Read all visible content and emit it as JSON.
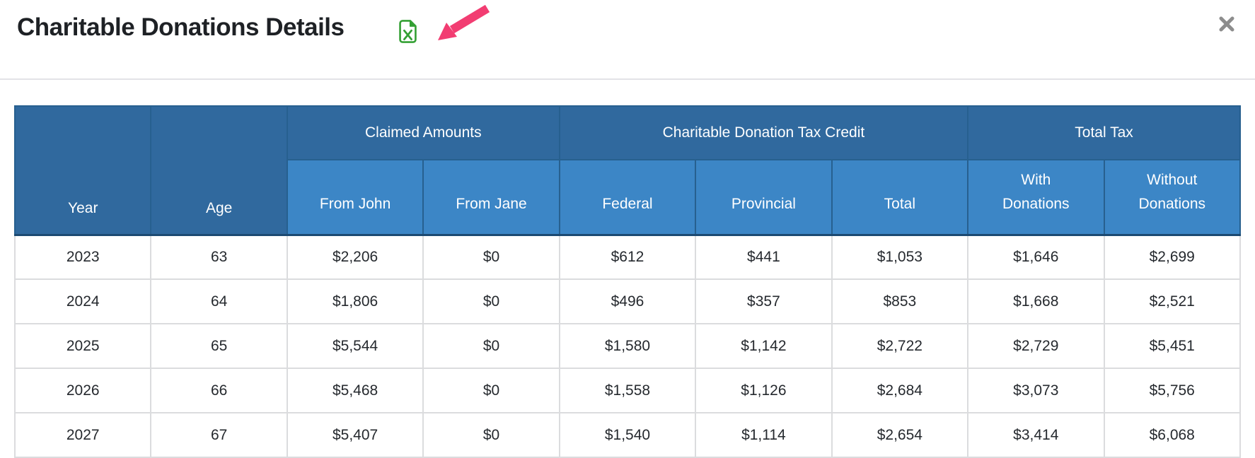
{
  "modal": {
    "title": "Charitable Donations Details",
    "icons": {
      "export_excel": "excel-file-icon",
      "close": "close-x-icon",
      "annotation_arrow": "pink-arrow-pointing-at-export-icon"
    }
  },
  "colors": {
    "header_dark_blue": "#30699E",
    "header_light_blue": "#3C86C6",
    "header_border": "#27608F",
    "header_bottom_border": "#1C4A72",
    "row_border": "#DBDCDE",
    "excel_green": "#34A034",
    "arrow_pink": "#F23D72",
    "close_gray": "#8D8D8D",
    "text_dark": "#212529"
  },
  "table": {
    "corner_columns": [
      "Year",
      "Age"
    ],
    "group_headers": [
      {
        "label": "Claimed Amounts",
        "span": 2
      },
      {
        "label": "Charitable Donation Tax Credit",
        "span": 3
      },
      {
        "label": "Total Tax",
        "span": 2
      }
    ],
    "sub_headers": [
      "From John",
      "From Jane",
      "Federal",
      "Provincial",
      "Total",
      "With\nDonations",
      "Without\nDonations"
    ],
    "rows": [
      [
        "2023",
        "63",
        "$2,206",
        "$0",
        "$612",
        "$441",
        "$1,053",
        "$1,646",
        "$2,699"
      ],
      [
        "2024",
        "64",
        "$1,806",
        "$0",
        "$496",
        "$357",
        "$853",
        "$1,668",
        "$2,521"
      ],
      [
        "2025",
        "65",
        "$5,544",
        "$0",
        "$1,580",
        "$1,142",
        "$2,722",
        "$2,729",
        "$5,451"
      ],
      [
        "2026",
        "66",
        "$5,468",
        "$0",
        "$1,558",
        "$1,126",
        "$2,684",
        "$3,073",
        "$5,756"
      ],
      [
        "2027",
        "67",
        "$5,407",
        "$0",
        "$1,540",
        "$1,114",
        "$2,654",
        "$3,414",
        "$6,068"
      ]
    ]
  }
}
